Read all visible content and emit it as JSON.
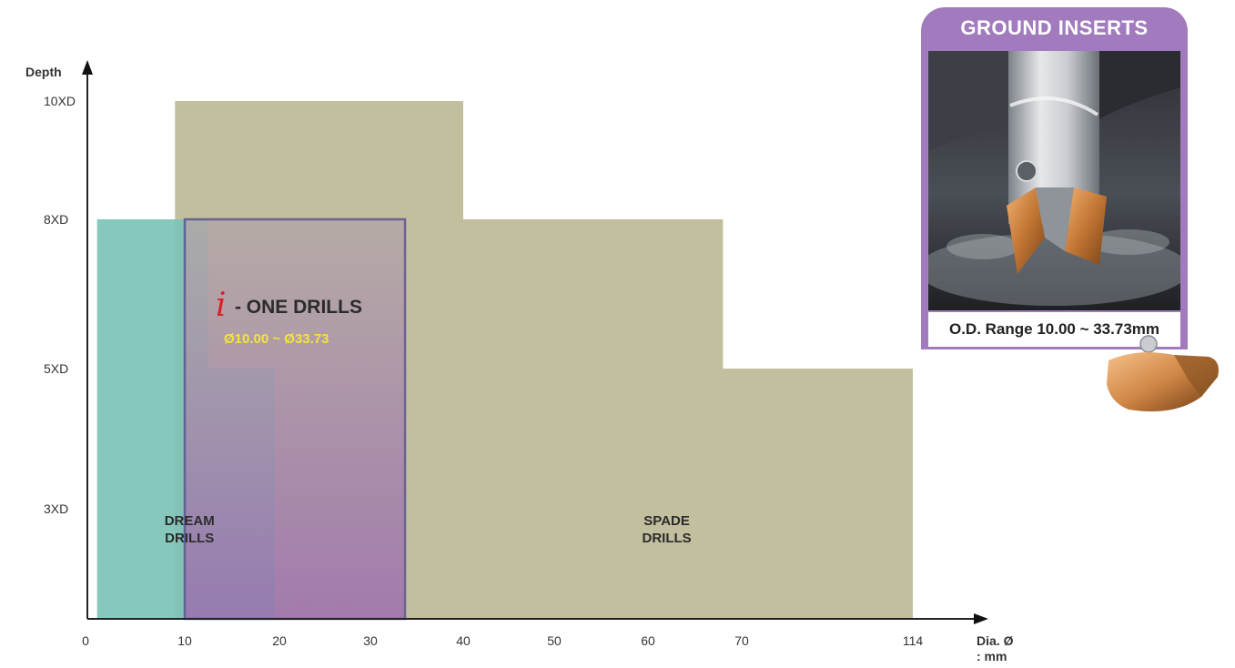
{
  "chart_data": {
    "type": "area",
    "y_axis": {
      "label": "Depth",
      "ticks": [
        "10XD",
        "8XD",
        "5XD",
        "3XD"
      ]
    },
    "x_axis": {
      "label_line1": "Dia. Ø",
      "label_line2": ": mm",
      "ticks": [
        "0",
        "10",
        "20",
        "30",
        "40",
        "50",
        "60",
        "70",
        "114"
      ]
    },
    "regions": [
      {
        "label_lines": [
          "SPADE",
          "DRILLS"
        ],
        "color": "#c2bf9f",
        "outline": [
          [
            9,
            0
          ],
          [
            9,
            10
          ],
          [
            40,
            10
          ],
          [
            40,
            8
          ],
          [
            68,
            8
          ],
          [
            68,
            5
          ],
          [
            90,
            5
          ],
          [
            90,
            0
          ]
        ],
        "label_at": [
          62,
          2.5
        ]
      },
      {
        "label_lines": [
          "DREAM",
          "DRILLS"
        ],
        "color": "#7cc3b5",
        "outline": [
          [
            1,
            0
          ],
          [
            1,
            8
          ],
          [
            12.5,
            8
          ],
          [
            12.5,
            5
          ],
          [
            19.5,
            5
          ],
          [
            19.5,
            0
          ]
        ],
        "label_at": [
          10.5,
          2.5
        ]
      },
      {
        "title_prefix": "i",
        "title": "- ONE DRILLS",
        "range": "Ø10.00 ~ Ø33.73",
        "color_top": "#b3a7a7",
        "color_bottom": "#9c6cb0",
        "border": "#5a4f8f",
        "x_range": [
          10,
          33.73
        ],
        "depth": 8
      }
    ],
    "grid": false
  },
  "inset": {
    "title": "GROUND INSERTS",
    "caption": "O.D. Range 10.00 ~ 33.73mm"
  }
}
